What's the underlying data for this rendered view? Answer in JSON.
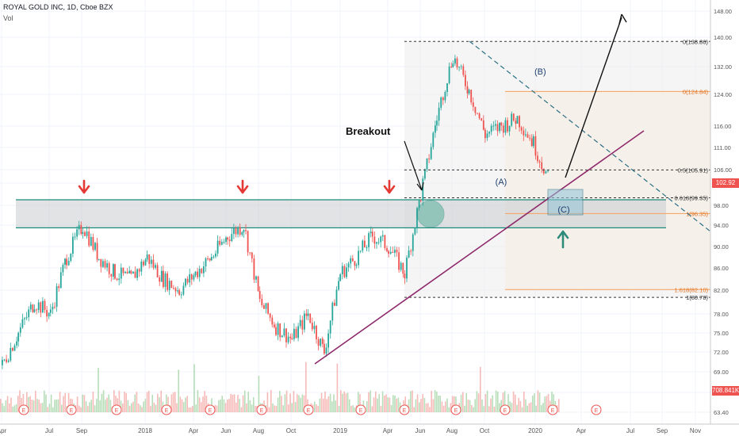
{
  "header": {
    "symbol": "ROYAL GOLD INC, 1D, Cboe BZX",
    "volume_label": "Vol"
  },
  "colors": {
    "up": "#26a69a",
    "down": "#ef5350",
    "purple": "#8e2a6b",
    "teal": "#1a8c7a",
    "orange": "#f5a05a",
    "arrow_red": "#e53935",
    "arrow_teal": "#2e8b7a"
  },
  "price_badge": {
    "value": "102.92",
    "color": "#ef5350"
  },
  "volume_badge": {
    "value": "708.841K",
    "color": "#ef5350"
  },
  "annotations": {
    "breakout": "Breakout",
    "wave_a": "(A)",
    "wave_b": "(B)",
    "wave_c": "(C)"
  },
  "earnings_marker": "E",
  "fib_top": {
    "levels": [
      {
        "label": "0(138.86)",
        "price": 138.86
      },
      {
        "label": "0.5(105.91)",
        "price": 105.91
      },
      {
        "label": "0.618(99.35)",
        "price": 99.35
      },
      {
        "label": "1(80.78)",
        "price": 80.78
      }
    ]
  },
  "fib_orange": {
    "levels": [
      {
        "label": "0(124.84)",
        "price": 124.84
      },
      {
        "label": "1(96.35)",
        "price": 96.35
      },
      {
        "label": "1.618(82.10)",
        "price": 82.1
      }
    ]
  },
  "chart_data": {
    "type": "candlestick",
    "title": "ROYAL GOLD INC, 1D, Cboe BZX",
    "y_axis_ticks": [
      148.0,
      140.0,
      132.0,
      124.0,
      116.0,
      111.0,
      106.0,
      102.0,
      98.0,
      94.0,
      90.0,
      86.0,
      82.0,
      78.0,
      75.0,
      72.0,
      69.0,
      66.0,
      63.4
    ],
    "x_axis_ticks": [
      "Apr",
      "Jul",
      "Sep",
      "2018",
      "Apr",
      "Jun",
      "Aug",
      "Oct",
      "2019",
      "Apr",
      "Jun",
      "Aug",
      "Oct",
      "2020",
      "Apr",
      "Jul",
      "Sep",
      "Nov"
    ],
    "log_scale": true,
    "support_zone": [
      93.5,
      99.0
    ],
    "last_price": 102.92,
    "price_path": [
      [
        "2017-04",
        70
      ],
      [
        "2017-05",
        75
      ],
      [
        "2017-06",
        80
      ],
      [
        "2017-07",
        78
      ],
      [
        "2017-08",
        88
      ],
      [
        "2017-09",
        94
      ],
      [
        "2017-10",
        88
      ],
      [
        "2017-11",
        85
      ],
      [
        "2017-12",
        84
      ],
      [
        "2018-01",
        88
      ],
      [
        "2018-02",
        84
      ],
      [
        "2018-03",
        82
      ],
      [
        "2018-04",
        85
      ],
      [
        "2018-05",
        88
      ],
      [
        "2018-06",
        92
      ],
      [
        "2018-07",
        94
      ],
      [
        "2018-08",
        80
      ],
      [
        "2018-09",
        76
      ],
      [
        "2018-10",
        74
      ],
      [
        "2018-11",
        78
      ],
      [
        "2018-12",
        72
      ],
      [
        "2019-01",
        85
      ],
      [
        "2019-02",
        88
      ],
      [
        "2019-03",
        92
      ],
      [
        "2019-04",
        90
      ],
      [
        "2019-05",
        85
      ],
      [
        "2019-06",
        100
      ],
      [
        "2019-07",
        118
      ],
      [
        "2019-08",
        135
      ],
      [
        "2019-09",
        125
      ],
      [
        "2019-10",
        114
      ],
      [
        "2019-11",
        116
      ],
      [
        "2019-12",
        118
      ],
      [
        "2020-01",
        112
      ],
      [
        "2020-02",
        103
      ]
    ]
  }
}
